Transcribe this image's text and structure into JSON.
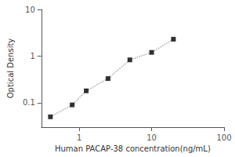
{
  "chart_data": {
    "type": "line",
    "xlabel": "Human PACAP-38 concentration(ng/mL)",
    "ylabel": "Optical Density",
    "x": [
      0.4,
      0.8,
      1.25,
      2.5,
      5,
      10,
      20
    ],
    "series": [
      {
        "type": "line",
        "color": "#aaaaaa",
        "line_style": "dotted",
        "values": [
          0.05,
          0.09,
          0.18,
          0.33,
          0.83,
          1.2,
          2.3
        ]
      },
      {
        "type": "scatter",
        "color": "black",
        "marker": "square",
        "values": [
          0.05,
          0.09,
          0.18,
          0.33,
          0.83,
          1.2,
          2.3
        ]
      }
    ],
    "xlim": [
      0.3,
      100
    ],
    "ylim": [
      0.03,
      10
    ],
    "xticks": [
      1,
      10,
      100
    ],
    "yticks": [
      0.1,
      1,
      10
    ],
    "log": true,
    "grid": false
  }
}
